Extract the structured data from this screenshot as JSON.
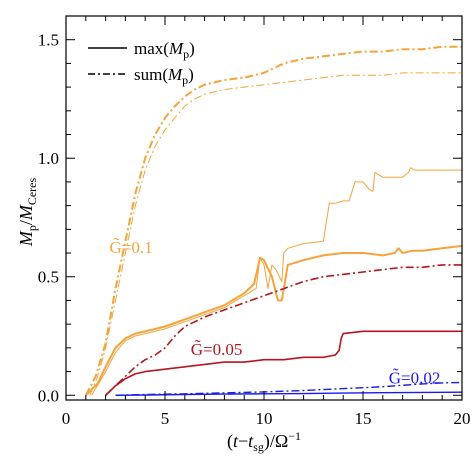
{
  "chart_data": {
    "type": "line",
    "title": "",
    "xlabel": "(t−t_sg)/Ω⁻¹",
    "ylabel": "M_p/M_Ceres",
    "xlim": [
      0,
      20
    ],
    "ylim": [
      -0.02,
      1.6
    ],
    "x_ticks": [
      0,
      5,
      10,
      15,
      20
    ],
    "y_ticks": [
      0.0,
      0.5,
      1.0,
      1.5
    ],
    "x_tick_labels": [
      "0",
      "5",
      "10",
      "15",
      "20"
    ],
    "y_tick_labels": [
      "0.0",
      "0.5",
      "1.0",
      "1.5"
    ],
    "grid": false,
    "legend_position": "top-left",
    "legend": [
      {
        "label": "max(M_p)",
        "style": "solid"
      },
      {
        "label": "sum(M_p)",
        "style": "dash-dot"
      }
    ],
    "annotations": [
      {
        "text": "G̃=0.1",
        "color": "#f5a33a",
        "x": 2.2,
        "y": 0.6
      },
      {
        "text": "G̃=0.05",
        "color": "#b8141e",
        "x": 6.3,
        "y": 0.17
      },
      {
        "text": "G̃=0.02",
        "color": "#1a1aee",
        "x": 16.3,
        "y": 0.05
      }
    ],
    "series": [
      {
        "G": "0.1",
        "kind": "max",
        "variant": "thin",
        "color": "#f5a33a",
        "style": "solid",
        "width": 1.0,
        "x": [
          1.3,
          2.0,
          2.5,
          3.0,
          3.5,
          4.0,
          5.0,
          6.0,
          7.0,
          8.0,
          9.0,
          9.6,
          9.8,
          10.0,
          10.2,
          10.4,
          10.6,
          10.9,
          11.0,
          11.2,
          12.0,
          13.0,
          13.3,
          13.6,
          14.0,
          14.3,
          14.6,
          15.0,
          15.3,
          15.5,
          15.6,
          15.8,
          16.0,
          17.0,
          17.3,
          17.4,
          17.6,
          18.0,
          19.0,
          20.0
        ],
        "y": [
          0.0,
          0.1,
          0.18,
          0.23,
          0.25,
          0.26,
          0.28,
          0.31,
          0.34,
          0.37,
          0.42,
          0.45,
          0.58,
          0.55,
          0.45,
          0.55,
          0.53,
          0.48,
          0.6,
          0.62,
          0.64,
          0.65,
          0.81,
          0.81,
          0.82,
          0.82,
          0.9,
          0.9,
          0.87,
          0.86,
          0.94,
          0.93,
          0.92,
          0.92,
          0.94,
          0.96,
          0.95,
          0.95,
          0.95,
          0.95
        ]
      },
      {
        "G": "0.1",
        "kind": "max",
        "variant": "thick",
        "color": "#f5a33a",
        "style": "solid",
        "width": 2.0,
        "x": [
          1.0,
          1.6,
          2.0,
          2.5,
          3.0,
          3.5,
          4.0,
          5.0,
          6.0,
          7.0,
          8.0,
          9.0,
          9.5,
          9.8,
          10.0,
          10.4,
          10.7,
          10.9,
          11.2,
          12.0,
          13.0,
          14.0,
          15.0,
          16.0,
          16.6,
          16.8,
          17.0,
          17.5,
          18.0,
          19.0,
          20.0
        ],
        "y": [
          0.0,
          0.05,
          0.12,
          0.2,
          0.24,
          0.26,
          0.27,
          0.29,
          0.32,
          0.35,
          0.38,
          0.43,
          0.47,
          0.58,
          0.57,
          0.5,
          0.4,
          0.4,
          0.55,
          0.57,
          0.59,
          0.6,
          0.6,
          0.59,
          0.6,
          0.62,
          0.6,
          0.61,
          0.61,
          0.62,
          0.63
        ]
      },
      {
        "G": "0.1",
        "kind": "sum",
        "variant": "thin",
        "color": "#f5a33a",
        "style": "dash-dot",
        "width": 1.0,
        "x": [
          1.2,
          1.6,
          2.0,
          2.5,
          3.0,
          3.5,
          4.0,
          4.5,
          5.0,
          5.5,
          6.0,
          6.5,
          7.0,
          7.5,
          8.0,
          9.0,
          10.0,
          11.0,
          12.0,
          13.0,
          14.0,
          15.0,
          16.0,
          17.0,
          18.0,
          19.0,
          20.0
        ],
        "y": [
          0.0,
          0.08,
          0.2,
          0.4,
          0.6,
          0.8,
          0.95,
          1.05,
          1.12,
          1.17,
          1.22,
          1.25,
          1.27,
          1.28,
          1.29,
          1.3,
          1.31,
          1.32,
          1.33,
          1.34,
          1.35,
          1.35,
          1.35,
          1.36,
          1.36,
          1.36,
          1.36
        ]
      },
      {
        "G": "0.1",
        "kind": "sum",
        "variant": "thick",
        "color": "#f5a33a",
        "style": "dash-dot",
        "width": 2.0,
        "x": [
          1.0,
          1.5,
          2.0,
          2.5,
          3.0,
          3.5,
          4.0,
          4.5,
          5.0,
          5.5,
          6.0,
          6.5,
          7.0,
          7.5,
          8.0,
          9.0,
          10.0,
          11.0,
          12.0,
          13.0,
          14.0,
          15.0,
          16.0,
          17.0,
          18.0,
          19.0,
          20.0
        ],
        "y": [
          0.0,
          0.08,
          0.22,
          0.45,
          0.65,
          0.85,
          1.0,
          1.1,
          1.17,
          1.22,
          1.26,
          1.29,
          1.31,
          1.32,
          1.33,
          1.34,
          1.36,
          1.4,
          1.42,
          1.43,
          1.44,
          1.45,
          1.45,
          1.46,
          1.46,
          1.47,
          1.47
        ]
      },
      {
        "G": "0.05",
        "kind": "max",
        "variant": "single",
        "color": "#b8141e",
        "style": "solid",
        "width": 1.6,
        "x": [
          2.0,
          2.5,
          3.0,
          3.5,
          4.0,
          5.0,
          6.0,
          7.0,
          8.0,
          9.0,
          10.0,
          11.0,
          12.0,
          13.0,
          13.6,
          13.8,
          13.9,
          14.0,
          15.0,
          16.0,
          17.0,
          18.0,
          19.0,
          20.0
        ],
        "y": [
          0.0,
          0.04,
          0.07,
          0.09,
          0.1,
          0.11,
          0.12,
          0.13,
          0.14,
          0.14,
          0.15,
          0.15,
          0.16,
          0.16,
          0.17,
          0.19,
          0.24,
          0.26,
          0.27,
          0.27,
          0.27,
          0.27,
          0.27,
          0.27
        ]
      },
      {
        "G": "0.05",
        "kind": "sum",
        "variant": "single",
        "color": "#b8141e",
        "style": "dash-dot",
        "width": 1.6,
        "x": [
          2.0,
          2.5,
          3.0,
          3.5,
          4.0,
          4.5,
          5.0,
          5.5,
          6.0,
          6.5,
          7.0,
          8.0,
          9.0,
          10.0,
          11.0,
          12.0,
          13.0,
          14.0,
          15.0,
          16.0,
          17.0,
          18.0,
          19.0,
          20.0
        ],
        "y": [
          0.0,
          0.04,
          0.08,
          0.12,
          0.15,
          0.17,
          0.2,
          0.25,
          0.29,
          0.31,
          0.33,
          0.36,
          0.39,
          0.42,
          0.45,
          0.48,
          0.5,
          0.51,
          0.52,
          0.53,
          0.54,
          0.54,
          0.55,
          0.55
        ]
      },
      {
        "G": "0.02",
        "kind": "max",
        "variant": "single",
        "color": "#1a1aee",
        "style": "solid",
        "width": 1.4,
        "x": [
          2.5,
          4.0,
          6.0,
          8.0,
          10.0,
          12.0,
          14.0,
          16.0,
          18.0,
          20.0
        ],
        "y": [
          0.0,
          0.001,
          0.003,
          0.005,
          0.006,
          0.007,
          0.009,
          0.011,
          0.012,
          0.013
        ]
      },
      {
        "G": "0.02",
        "kind": "sum",
        "variant": "single",
        "color": "#1a1aee",
        "style": "dash-dot",
        "width": 1.4,
        "x": [
          2.5,
          4.0,
          6.0,
          8.0,
          10.0,
          11.0,
          12.0,
          13.0,
          14.0,
          15.0,
          16.0,
          17.0,
          18.0,
          19.0,
          20.0
        ],
        "y": [
          0.0,
          0.003,
          0.006,
          0.01,
          0.014,
          0.017,
          0.02,
          0.024,
          0.028,
          0.032,
          0.036,
          0.042,
          0.048,
          0.052,
          0.054
        ]
      }
    ]
  }
}
